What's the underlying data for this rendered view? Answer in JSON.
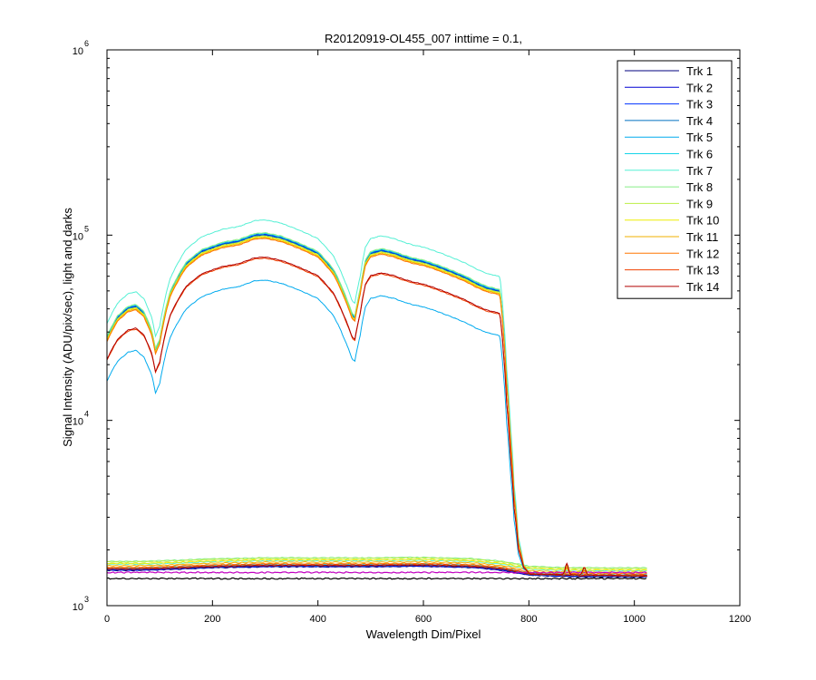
{
  "chart_data": {
    "type": "line",
    "title": "R20120919-OL455_007 inttime = 0.1,",
    "xlabel": "Wavelength Dim/Pixel",
    "ylabel": "Signal Intensity (ADU/pix/sec), light and darks",
    "xlim": [
      0,
      1200
    ],
    "ylim": [
      1000,
      1000000
    ],
    "yscale": "log",
    "x_ticks": [
      0,
      200,
      400,
      600,
      800,
      1000,
      1200
    ],
    "y_ticks": [
      {
        "value": 1000,
        "base": "10",
        "exp": "3"
      },
      {
        "value": 10000,
        "base": "10",
        "exp": "4"
      },
      {
        "value": 100000,
        "base": "10",
        "exp": "5"
      },
      {
        "value": 1000000,
        "base": "10",
        "exp": "6"
      }
    ],
    "grid": false,
    "legend_position": "top-right",
    "lit_profile": {
      "x": [
        0,
        20,
        40,
        55,
        70,
        85,
        92,
        100,
        120,
        150,
        180,
        220,
        250,
        280,
        300,
        330,
        360,
        400,
        430,
        450,
        465,
        470,
        480,
        490,
        500,
        520,
        545,
        560,
        580,
        600,
        620,
        650,
        680,
        700,
        720,
        745,
        752,
        758,
        765,
        772,
        780,
        790,
        800
      ],
      "y": [
        28000,
        36000,
        40500,
        41500,
        38000,
        30000,
        24000,
        27000,
        49000,
        70000,
        82000,
        90000,
        93000,
        100000,
        101000,
        97000,
        90000,
        80000,
        64000,
        48000,
        37000,
        36000,
        50000,
        72000,
        80000,
        83000,
        80000,
        77000,
        74000,
        72000,
        69000,
        64000,
        59000,
        55000,
        52000,
        50000,
        30000,
        16000,
        8000,
        4000,
        2200,
        1650,
        1500
      ]
    },
    "dark_profile": {
      "x": [
        0,
        50,
        100,
        200,
        300,
        400,
        500,
        600,
        700,
        750,
        800,
        850,
        900,
        1024
      ],
      "y": [
        1550,
        1550,
        1560,
        1600,
        1620,
        1620,
        1620,
        1630,
        1600,
        1550,
        1460,
        1440,
        1430,
        1430
      ]
    },
    "series": [
      {
        "name": "Trk 1",
        "color": "#00007f",
        "scale": 0.99,
        "dark": 1.0
      },
      {
        "name": "Trk 2",
        "color": "#0000d4",
        "scale": 1.0,
        "dark": 1.005
      },
      {
        "name": "Trk 3",
        "color": "#0033ff",
        "scale": 1.0,
        "dark": 1.01
      },
      {
        "name": "Trk 4",
        "color": "#0070c0",
        "scale": 0.99,
        "dark": 1.015
      },
      {
        "name": "Trk 5",
        "color": "#00aaee",
        "scale": 0.56,
        "dark": 1.02
      },
      {
        "name": "Trk 6",
        "color": "#14d4e8",
        "scale": 1.01,
        "dark": 1.03
      },
      {
        "name": "Trk 7",
        "color": "#55f0d5",
        "scale": 1.2,
        "dark": 1.08
      },
      {
        "name": "Trk 8",
        "color": "#88ee88",
        "scale": 1.02,
        "dark": 1.12
      },
      {
        "name": "Trk 9",
        "color": "#bbee44",
        "scale": 0.98,
        "dark": 1.11
      },
      {
        "name": "Trk 10",
        "color": "#eeee00",
        "scale": 0.97,
        "dark": 1.09
      },
      {
        "name": "Trk 11",
        "color": "#f0b000",
        "scale": 0.96,
        "dark": 1.06
      },
      {
        "name": "Trk 12",
        "color": "#ff7700",
        "scale": 0.95,
        "dark": 1.04
      },
      {
        "name": "Trk 13",
        "color": "#f04000",
        "scale": 0.74,
        "dark": 1.025
      },
      {
        "name": "Trk 14",
        "color": "#b00000",
        "scale": 0.75,
        "dark": 1.015
      }
    ],
    "extra_darks": [
      {
        "color": "#000000",
        "level": 1400
      },
      {
        "color": "#c000c0",
        "level": 1510
      }
    ]
  }
}
